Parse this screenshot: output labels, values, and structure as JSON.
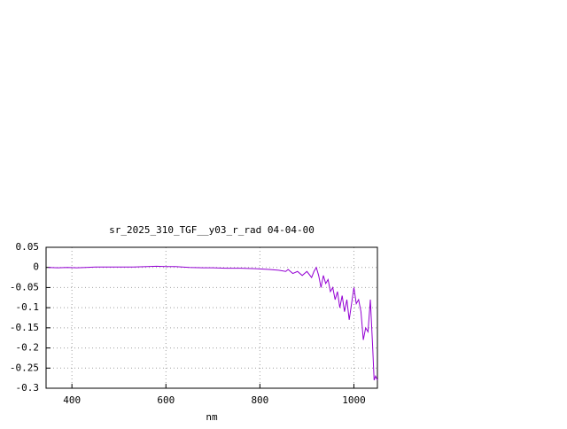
{
  "chart_data": {
    "type": "line",
    "title": "sr_2025_310_TGF__y03_r_rad 04-04-00",
    "x_label": "nm",
    "x": [
      350,
      370,
      390,
      410,
      430,
      450,
      470,
      500,
      530,
      560,
      580,
      600,
      620,
      650,
      680,
      700,
      730,
      760,
      790,
      820,
      840,
      855,
      860,
      870,
      880,
      890,
      900,
      910,
      915,
      920,
      925,
      930,
      935,
      940,
      945,
      950,
      955,
      960,
      965,
      970,
      975,
      980,
      985,
      990,
      995,
      1000,
      1005,
      1010,
      1015,
      1020,
      1025,
      1030,
      1035,
      1040,
      1043,
      1046,
      1050
    ],
    "series": [
      {
        "name": "sr_2025_310_TGF__y03_r_rad",
        "color": "#9400d3",
        "values": [
          0,
          -0.001,
          0,
          -0.001,
          0,
          0.001,
          0.001,
          0.001,
          0.001,
          0.002,
          0.003,
          0.002,
          0.002,
          0,
          -0.001,
          -0.001,
          -0.002,
          -0.002,
          -0.003,
          -0.005,
          -0.007,
          -0.01,
          -0.005,
          -0.015,
          -0.01,
          -0.02,
          -0.01,
          -0.025,
          -0.01,
          0,
          -0.02,
          -0.05,
          -0.02,
          -0.04,
          -0.03,
          -0.06,
          -0.05,
          -0.08,
          -0.06,
          -0.1,
          -0.07,
          -0.11,
          -0.08,
          -0.13,
          -0.09,
          -0.05,
          -0.09,
          -0.08,
          -0.11,
          -0.18,
          -0.15,
          -0.16,
          -0.08,
          -0.2,
          -0.28,
          -0.27,
          -0.28
        ]
      }
    ],
    "xlim": [
      345,
      1050
    ],
    "ylim": [
      -0.3,
      0.05
    ],
    "xticks": [
      400,
      600,
      800,
      1000
    ],
    "yticks": [
      0.05,
      0,
      -0.05,
      -0.1,
      -0.15,
      -0.2,
      -0.25,
      -0.3
    ],
    "grid": true
  }
}
